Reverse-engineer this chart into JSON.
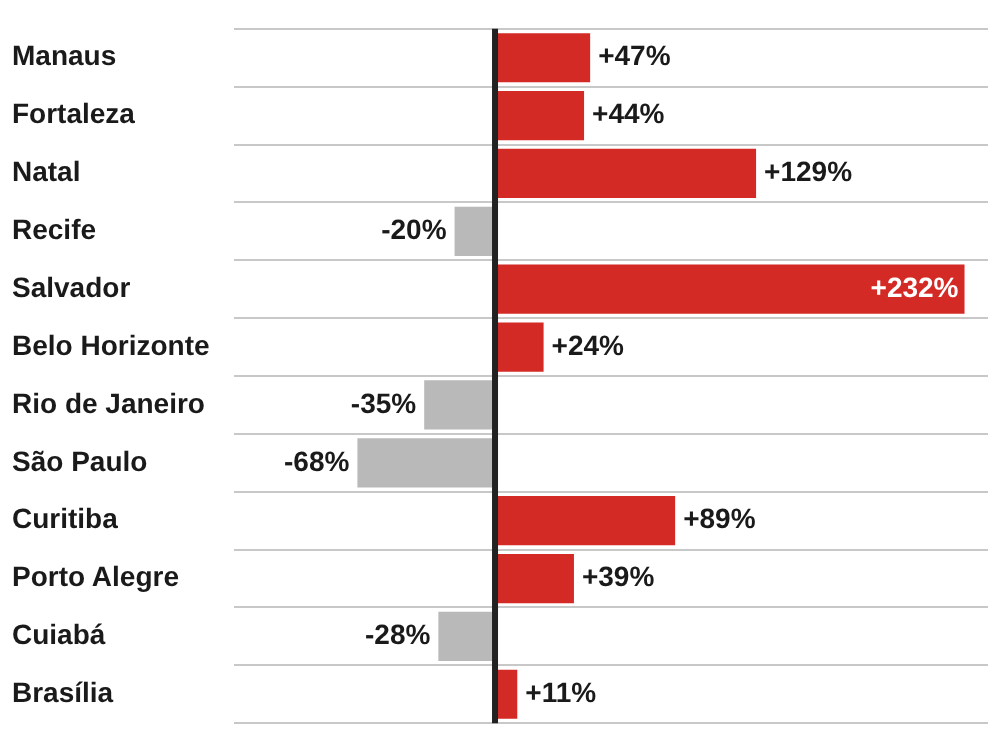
{
  "chart_data": {
    "type": "bar",
    "orientation": "horizontal",
    "categories": [
      "Manaus",
      "Fortaleza",
      "Natal",
      "Recife",
      "Salvador",
      "Belo Horizonte",
      "Rio de Janeiro",
      "São Paulo",
      "Curitiba",
      "Porto Alegre",
      "Cuiabá",
      "Brasília"
    ],
    "values": [
      47,
      44,
      129,
      -20,
      232,
      24,
      -35,
      -68,
      89,
      39,
      -28,
      11
    ],
    "value_labels": [
      "+47%",
      "+44%",
      "+129%",
      "-20%",
      "+232%",
      "+24%",
      "-35%",
      "-68%",
      "+89%",
      "+39%",
      "-28%",
      "+11%"
    ],
    "colors": [
      "#d42a26",
      "#d42a26",
      "#d42a26",
      "#b9b9b9",
      "#d42a26",
      "#d42a26",
      "#b9b9b9",
      "#b9b9b9",
      "#d42a26",
      "#d42a26",
      "#b9b9b9",
      "#d42a26"
    ],
    "grid": "y",
    "legend": false
  }
}
